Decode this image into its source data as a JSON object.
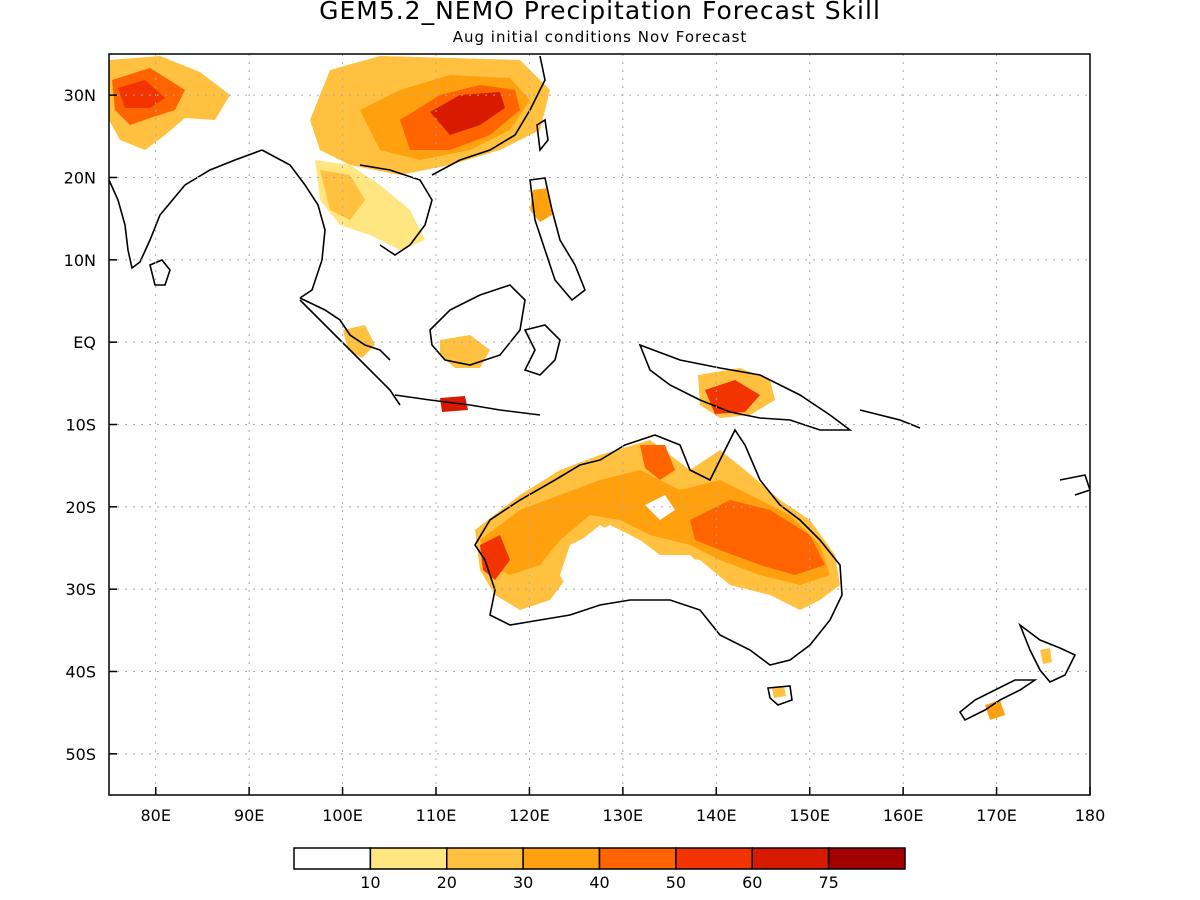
{
  "title": "GEM5.2_NEMO Precipitation Forecast Skill",
  "subtitle": "Aug initial conditions  Nov Forecast",
  "map": {
    "lon_range": [
      75,
      180
    ],
    "lat_range": [
      -55,
      35
    ],
    "lat_ticks": [
      {
        "lat": 30,
        "label": "30N"
      },
      {
        "lat": 20,
        "label": "20N"
      },
      {
        "lat": 10,
        "label": "10N"
      },
      {
        "lat": 0,
        "label": "EQ"
      },
      {
        "lat": -10,
        "label": "10S"
      },
      {
        "lat": -20,
        "label": "20S"
      },
      {
        "lat": -30,
        "label": "30S"
      },
      {
        "lat": -40,
        "label": "40S"
      },
      {
        "lat": -50,
        "label": "50S"
      }
    ],
    "lon_ticks": [
      {
        "lon": 80,
        "label": "80E"
      },
      {
        "lon": 90,
        "label": "90E"
      },
      {
        "lon": 100,
        "label": "100E"
      },
      {
        "lon": 110,
        "label": "110E"
      },
      {
        "lon": 120,
        "label": "120E"
      },
      {
        "lon": 130,
        "label": "130E"
      },
      {
        "lon": 140,
        "label": "140E"
      },
      {
        "lon": 150,
        "label": "150E"
      },
      {
        "lon": 160,
        "label": "160E"
      },
      {
        "lon": 170,
        "label": "170E"
      },
      {
        "lon": 180,
        "label": "180"
      }
    ]
  },
  "colorbar": {
    "colors": [
      "#ffffff",
      "#ffe680",
      "#ffc13f",
      "#ffa00f",
      "#ff6400",
      "#f23400",
      "#d81b00",
      "#a50000"
    ],
    "labels": [
      "10",
      "20",
      "30",
      "40",
      "50",
      "60",
      "75"
    ]
  }
}
